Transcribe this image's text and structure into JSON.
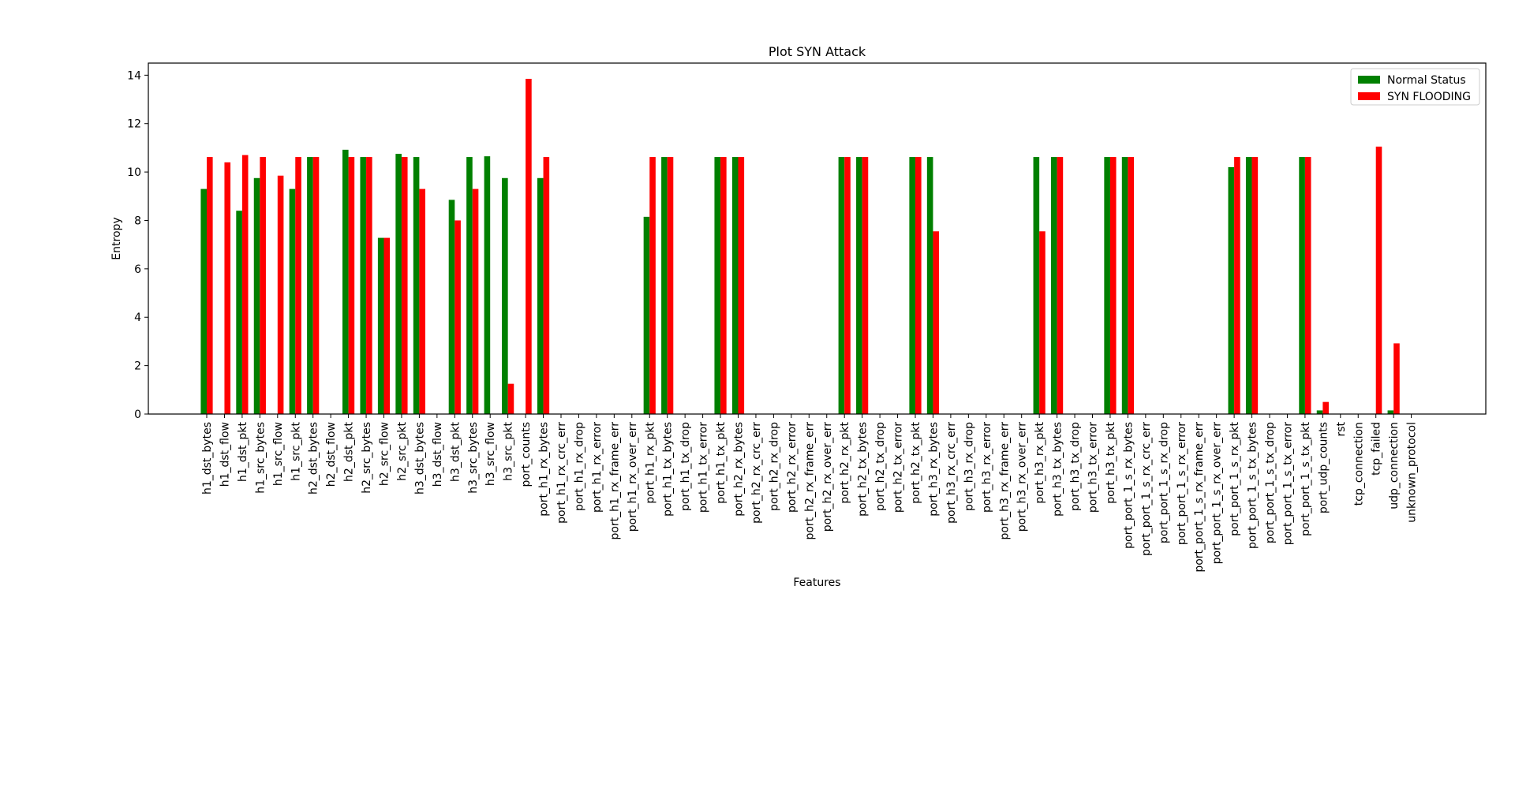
{
  "chart_data": {
    "type": "bar",
    "title": "Plot SYN Attack",
    "xlabel": "Features",
    "ylabel": "Entropy",
    "ylim": [
      0,
      14.5
    ],
    "yticks": [
      0,
      2,
      4,
      6,
      8,
      10,
      12,
      14
    ],
    "legend_position": "top-right",
    "categories": [
      "h1_dst_bytes",
      "h1_dst_flow",
      "h1_dst_pkt",
      "h1_src_bytes",
      "h1_src_flow",
      "h1_src_pkt",
      "h2_dst_bytes",
      "h2_dst_flow",
      "h2_dst_pkt",
      "h2_src_bytes",
      "h2_src_flow",
      "h2_src_pkt",
      "h3_dst_bytes",
      "h3_dst_flow",
      "h3_dst_pkt",
      "h3_src_bytes",
      "h3_src_flow",
      "h3_src_pkt",
      "port_counts",
      "port_h1_rx_bytes",
      "port_h1_rx_crc_err",
      "port_h1_rx_drop",
      "port_h1_rx_error",
      "port_h1_rx_frame_err",
      "port_h1_rx_over_err",
      "port_h1_rx_pkt",
      "port_h1_tx_bytes",
      "port_h1_tx_drop",
      "port_h1_tx_error",
      "port_h1_tx_pkt",
      "port_h2_rx_bytes",
      "port_h2_rx_crc_err",
      "port_h2_rx_drop",
      "port_h2_rx_error",
      "port_h2_rx_frame_err",
      "port_h2_rx_over_err",
      "port_h2_rx_pkt",
      "port_h2_tx_bytes",
      "port_h2_tx_drop",
      "port_h2_tx_error",
      "port_h2_tx_pkt",
      "port_h3_rx_bytes",
      "port_h3_rx_crc_err",
      "port_h3_rx_drop",
      "port_h3_rx_error",
      "port_h3_rx_frame_err",
      "port_h3_rx_over_err",
      "port_h3_rx_pkt",
      "port_h3_tx_bytes",
      "port_h3_tx_drop",
      "port_h3_tx_error",
      "port_h3_tx_pkt",
      "port_port_1_s_rx_bytes",
      "port_port_1_s_rx_crc_err",
      "port_port_1_s_rx_drop",
      "port_port_1_s_rx_error",
      "port_port_1_s_rx_frame_err",
      "port_port_1_s_rx_over_err",
      "port_port_1_s_rx_pkt",
      "port_port_1_s_tx_bytes",
      "port_port_1_s_tx_drop",
      "port_port_1_s_tx_error",
      "port_port_1_s_tx_pkt",
      "port_udp_counts",
      "rst",
      "tcp_connection",
      "tcp_failed",
      "udp_connection",
      "unknown_protocol"
    ],
    "series": [
      {
        "name": "Normal Status",
        "color": "#008000",
        "values": [
          9.3,
          0,
          8.4,
          9.75,
          0,
          9.3,
          10.62,
          0,
          10.92,
          10.62,
          7.28,
          10.75,
          10.62,
          0,
          8.85,
          10.62,
          10.65,
          9.75,
          0,
          9.75,
          0,
          0,
          0,
          0,
          0,
          8.15,
          10.62,
          0,
          0,
          10.62,
          10.62,
          0,
          0,
          0,
          0,
          0,
          10.62,
          10.62,
          0,
          0,
          10.62,
          10.62,
          0,
          0,
          0,
          0,
          0,
          10.62,
          10.62,
          0,
          0,
          10.62,
          10.62,
          0,
          0,
          0,
          0,
          0,
          10.2,
          10.62,
          0,
          0,
          10.62,
          0.15,
          0,
          0,
          0,
          0.15,
          0
        ]
      },
      {
        "name": "SYN FLOODING",
        "color": "#ff0000",
        "values": [
          10.62,
          10.4,
          10.7,
          10.62,
          9.85,
          10.62,
          10.62,
          0,
          10.62,
          10.62,
          7.28,
          10.62,
          9.3,
          0,
          8.0,
          9.3,
          0,
          1.25,
          13.85,
          10.62,
          0,
          0,
          0,
          0,
          0,
          10.62,
          10.62,
          0,
          0,
          10.62,
          10.62,
          0,
          0,
          0,
          0,
          0,
          10.62,
          10.62,
          0,
          0,
          10.62,
          7.55,
          0,
          0,
          0,
          0,
          0,
          7.55,
          10.62,
          0,
          0,
          10.62,
          10.62,
          0,
          0,
          0,
          0,
          0,
          10.62,
          10.62,
          0,
          0,
          10.62,
          0.5,
          0,
          0,
          11.05,
          2.92,
          0
        ]
      }
    ]
  }
}
